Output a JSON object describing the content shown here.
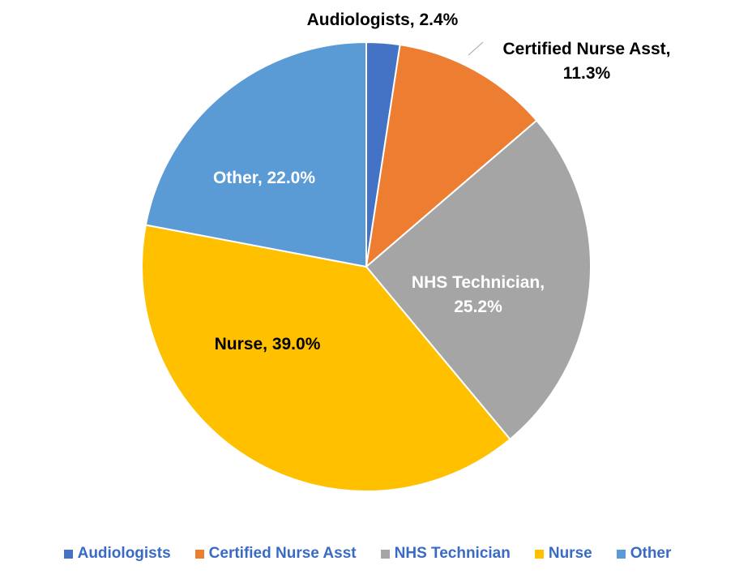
{
  "chart_data": {
    "type": "pie",
    "categories": [
      "Audiologists",
      "Certified Nurse Asst",
      "NHS Technician",
      "Nurse",
      "Other"
    ],
    "values": [
      2.4,
      11.3,
      25.2,
      39.0,
      22.0
    ],
    "value_labels": [
      "Audiologists, 2.4%",
      "Certified Nurse Asst, 11.3%",
      "NHS Technician, 25.2%",
      "Nurse, 39.0%",
      "Other, 22.0%"
    ],
    "colors": [
      "#4472c4",
      "#ed7d31",
      "#a5a5a5",
      "#ffc000",
      "#5b9bd5"
    ],
    "legend": "bottom"
  }
}
